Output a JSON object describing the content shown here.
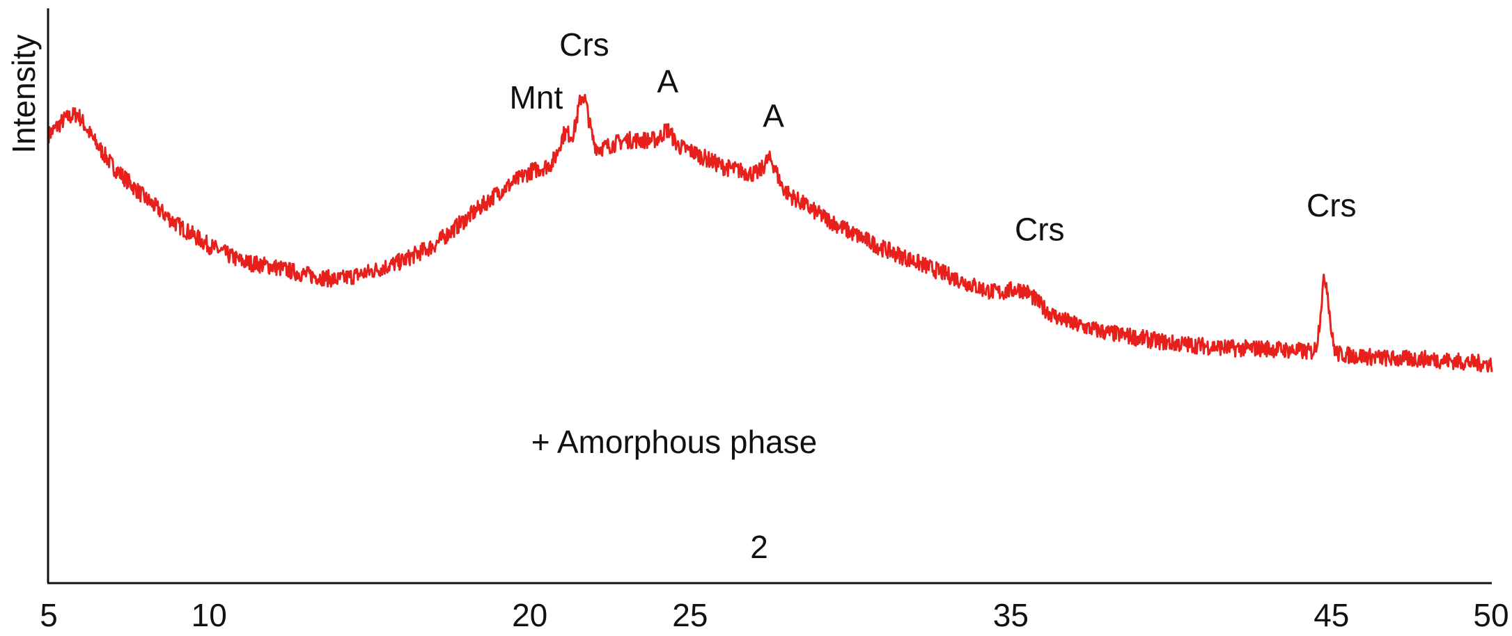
{
  "chart_data": {
    "type": "line",
    "title": "",
    "ylabel": "Intensity",
    "xlabel": "2",
    "xlim": [
      5,
      50
    ],
    "ylim": [
      0,
      100
    ],
    "x_ticks": [
      5,
      10,
      20,
      25,
      35,
      45,
      50
    ],
    "grid": false,
    "legend": "none",
    "line_color": "#e8201c",
    "annotation_text": "+ Amorphous phase",
    "baseline": [
      [
        5.0,
        85
      ],
      [
        5.5,
        88
      ],
      [
        5.9,
        89
      ],
      [
        6.4,
        84
      ],
      [
        7.0,
        79
      ],
      [
        8.0,
        73
      ],
      [
        9.0,
        68
      ],
      [
        10.0,
        64
      ],
      [
        11.0,
        61
      ],
      [
        12.0,
        60
      ],
      [
        13.0,
        58.5
      ],
      [
        14.0,
        57.5
      ],
      [
        15.0,
        59
      ],
      [
        16.0,
        61
      ],
      [
        17.0,
        64
      ],
      [
        18.0,
        69
      ],
      [
        19.0,
        74
      ],
      [
        20.0,
        78
      ],
      [
        21.0,
        80
      ],
      [
        22.0,
        82
      ],
      [
        23.0,
        84
      ],
      [
        24.0,
        84
      ],
      [
        25.0,
        82
      ],
      [
        26.0,
        79
      ],
      [
        27.0,
        77.5
      ],
      [
        28.0,
        74
      ],
      [
        29.0,
        70
      ],
      [
        30.0,
        66.5
      ],
      [
        31.0,
        63.5
      ],
      [
        32.0,
        61
      ],
      [
        33.0,
        58.5
      ],
      [
        34.0,
        56
      ],
      [
        35.0,
        54
      ],
      [
        36.0,
        51.5
      ],
      [
        37.0,
        49
      ],
      [
        38.0,
        47.5
      ],
      [
        39.0,
        46.5
      ],
      [
        40.0,
        45.5
      ],
      [
        41.0,
        45
      ],
      [
        42.0,
        44.5
      ],
      [
        43.0,
        44.5
      ],
      [
        44.0,
        44
      ],
      [
        45.0,
        43.5
      ],
      [
        46.0,
        43
      ],
      [
        47.0,
        42.5
      ],
      [
        48.0,
        42.5
      ],
      [
        49.0,
        42
      ],
      [
        50.0,
        41.5
      ]
    ],
    "peaks": [
      {
        "x": 21.1,
        "height": 5,
        "width": 0.18
      },
      {
        "x": 21.65,
        "height": 11,
        "width": 0.18
      },
      {
        "x": 24.3,
        "height": 2.5,
        "width": 0.15
      },
      {
        "x": 27.5,
        "height": 4.5,
        "width": 0.2
      },
      {
        "x": 35.4,
        "height": 2.5,
        "width": 0.4
      },
      {
        "x": 44.8,
        "height": 14,
        "width": 0.13
      }
    ],
    "noise_amplitude": 1.6,
    "phase_labels": [
      {
        "text": "Crs",
        "x": 21.7,
        "y": 100
      },
      {
        "text": "Mnt",
        "x": 20.2,
        "y": 90
      },
      {
        "text": "A",
        "x": 24.3,
        "y": 93
      },
      {
        "text": "A",
        "x": 27.6,
        "y": 86.5
      },
      {
        "text": "Crs",
        "x": 35.9,
        "y": 65
      },
      {
        "text": "Crs",
        "x": 45.0,
        "y": 69.5
      }
    ]
  }
}
